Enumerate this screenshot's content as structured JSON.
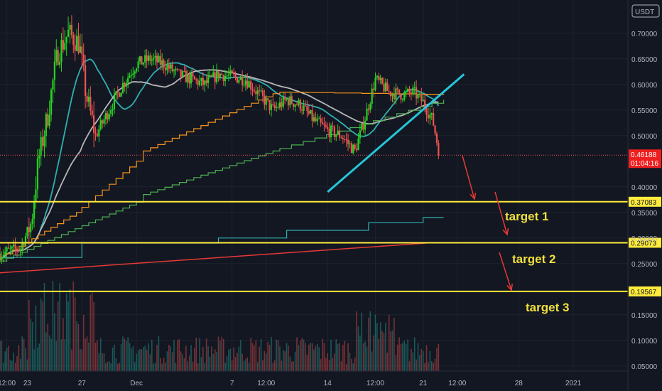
{
  "chart_data": {
    "type": "candlestick",
    "currency": "USDT",
    "yticks": [
      "0.70000",
      "0.65000",
      "0.60000",
      "0.55000",
      "0.50000",
      "0.40000",
      "0.35000",
      "0.30000",
      "0.25000",
      "0.15000",
      "0.10000",
      "0.05000"
    ],
    "ytick_values": [
      0.7,
      0.65,
      0.6,
      0.55,
      0.5,
      0.4,
      0.35,
      0.3,
      0.25,
      0.15,
      0.1,
      0.05
    ],
    "xticks": [
      "12:00",
      "23",
      "27",
      "Dec",
      "7",
      "12:00",
      "14",
      "12:00",
      "21",
      "12:00",
      "28",
      "2021"
    ],
    "xtick_days": [
      -1.5,
      0,
      4,
      8,
      15,
      17.5,
      22,
      25.5,
      29,
      31.5,
      36,
      40
    ],
    "ylim": [
      0.04,
      0.765
    ],
    "xlim": [
      -2,
      44
    ],
    "current_price": "0.46188",
    "current_price_value": 0.46188,
    "countdown": "01:04:16",
    "levels": [
      {
        "label": "0.37083",
        "value": 0.37083,
        "color": "#ffeb3b"
      },
      {
        "label": "0.29073",
        "value": 0.29073,
        "color": "#ffeb3b"
      },
      {
        "label": "0.19567",
        "value": 0.19567,
        "color": "#ffeb3b"
      }
    ],
    "annotations": [
      {
        "text": "target 1"
      },
      {
        "text": "target 2"
      },
      {
        "text": "target 3"
      }
    ],
    "colors": {
      "background": "#131722",
      "up": "#26a69a",
      "up_bright": "#27d421",
      "down": "#ef5350",
      "level": "#ffeb3b",
      "ma_teal": "#2fb0b0",
      "ma_gray": "#b7b7b7",
      "ma_orange": "#f7931a",
      "ma_green": "#4caf50",
      "arrow": "#e53935",
      "trendline": "#26c6da",
      "grid": "#1e222d"
    }
  }
}
